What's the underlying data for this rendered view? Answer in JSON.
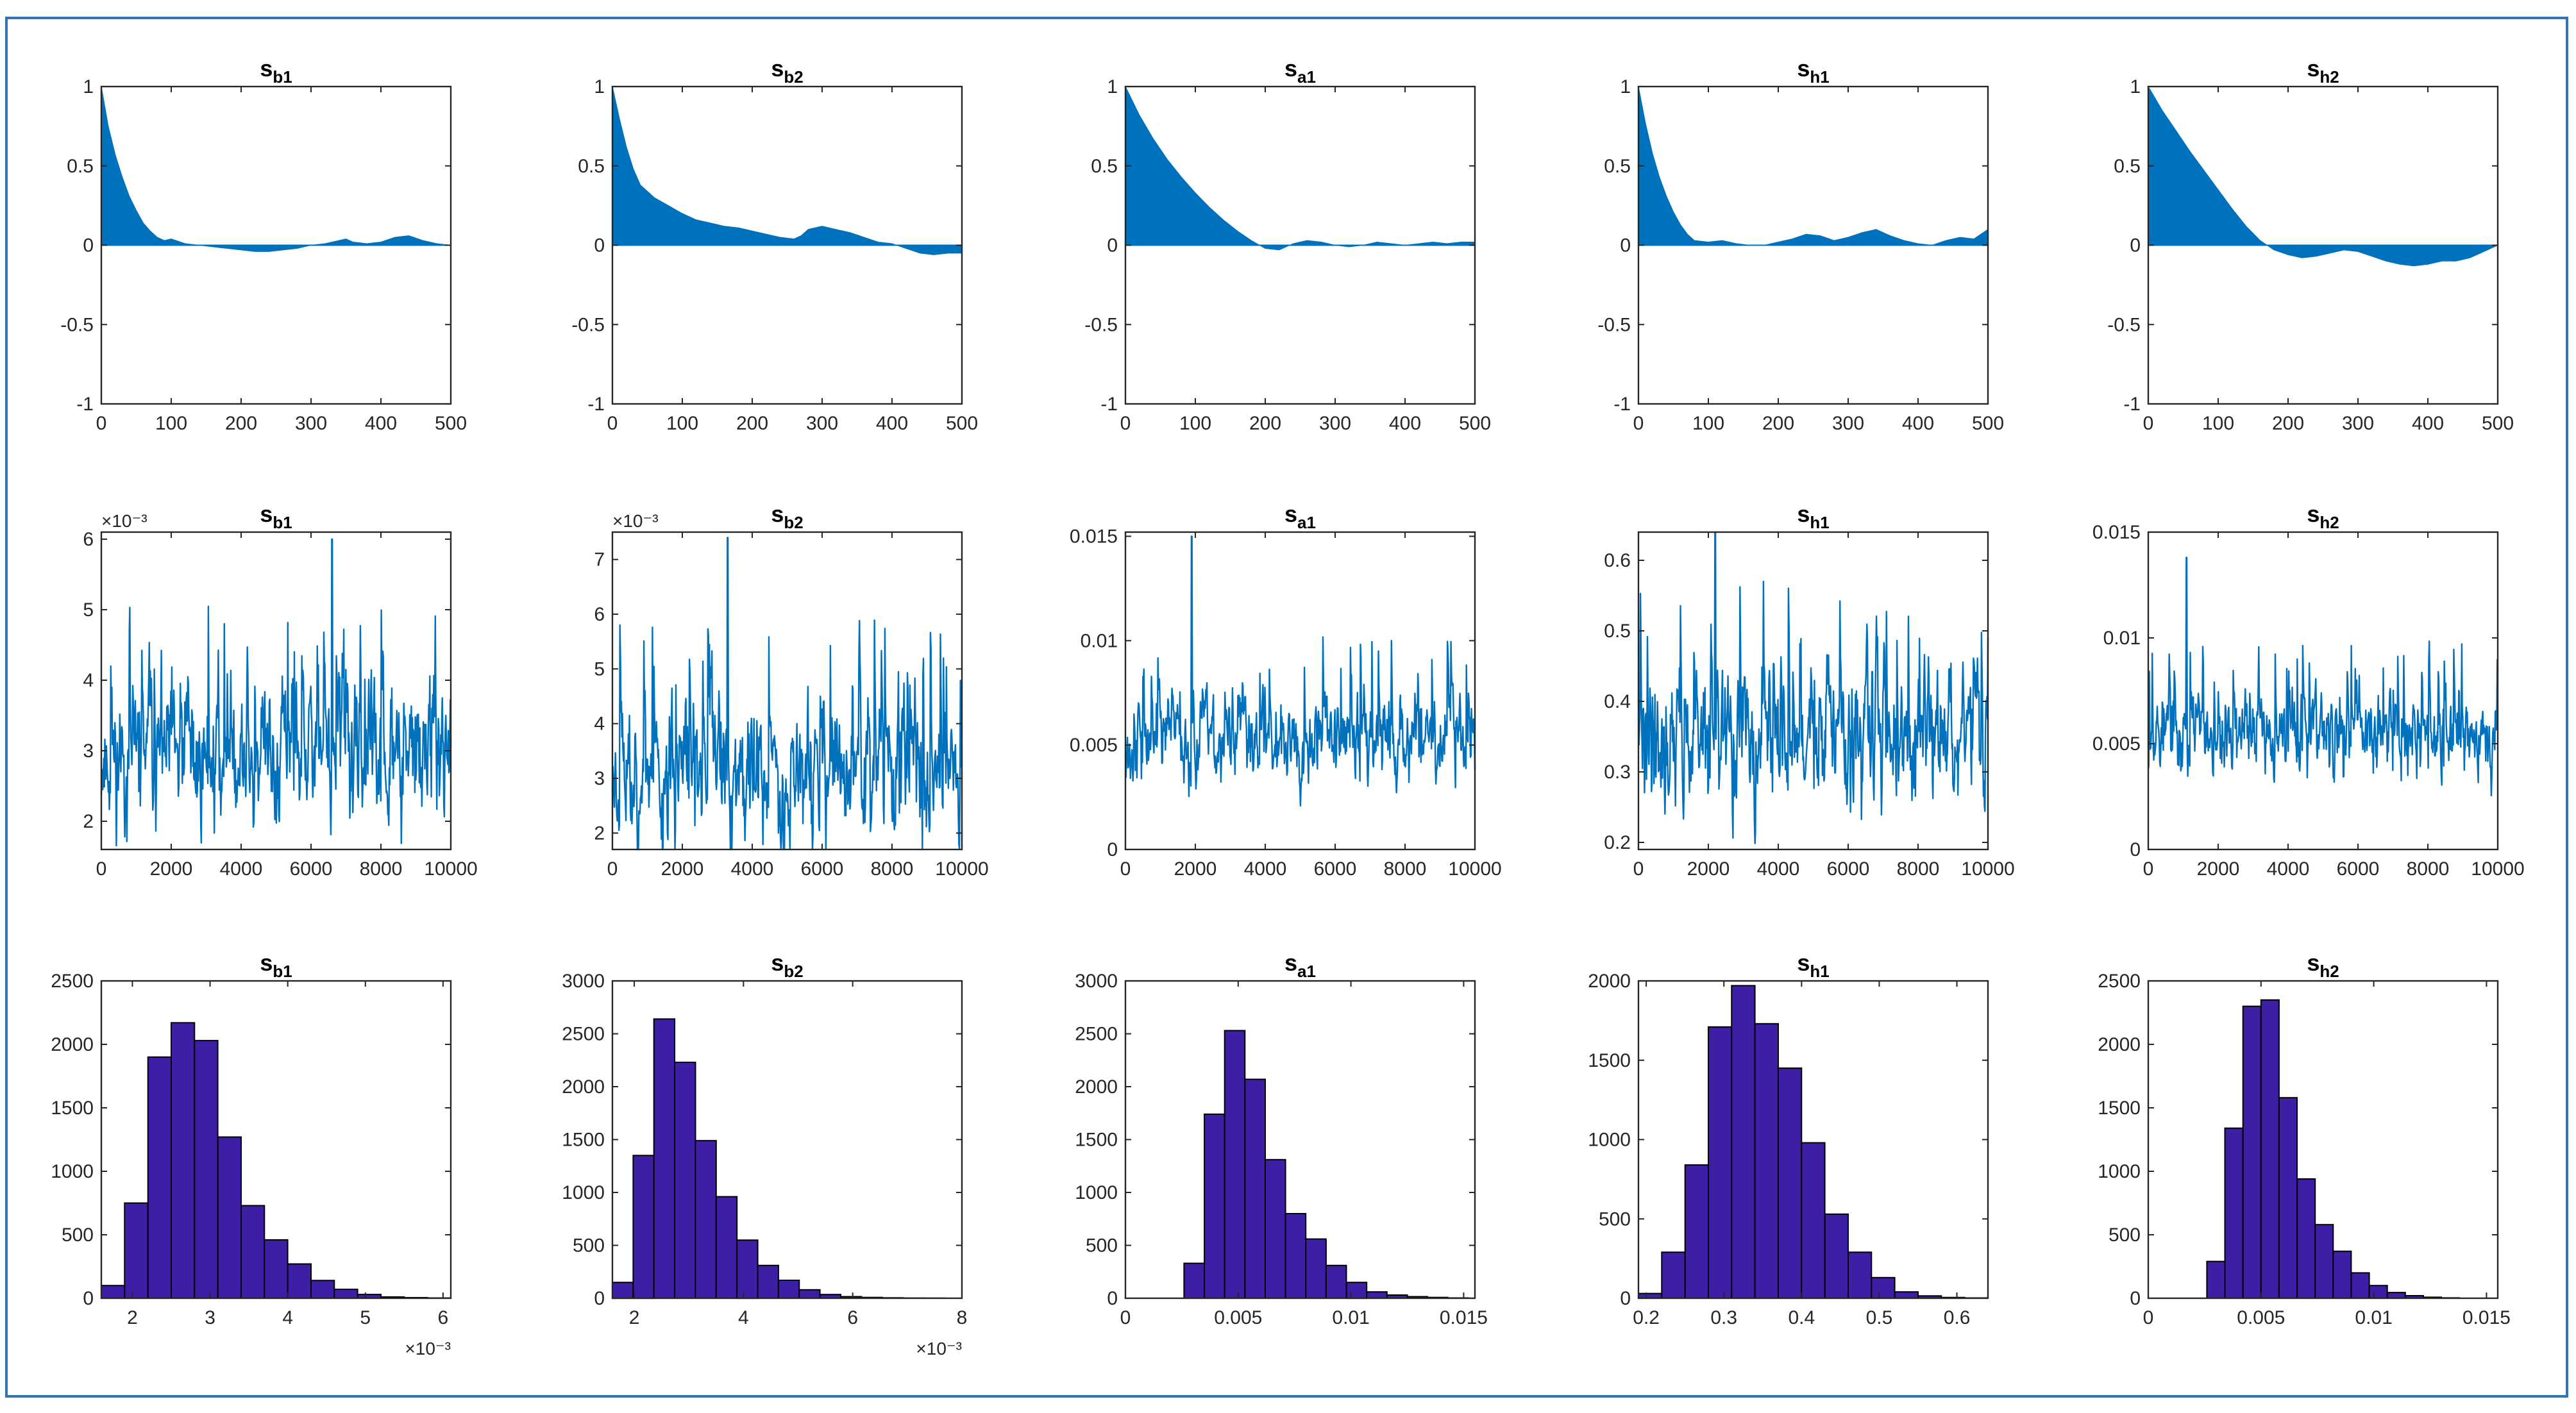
{
  "figure": {
    "frame_color": "#2e75b6"
  },
  "colors": {
    "acf_fill": "#0072bd",
    "trace_line": "#0072bd",
    "hist_fill": "#3f1ea6",
    "axis": "#262626"
  },
  "chart_data": [
    {
      "type": "area",
      "row": "autocorrelation",
      "title_base": "s",
      "title_sub": "b1",
      "xlim": [
        0,
        500
      ],
      "ylim": [
        -1,
        1
      ],
      "xticks": [
        0,
        100,
        200,
        300,
        400,
        500
      ],
      "xtick_labels": [
        "0",
        "100",
        "200",
        "300",
        "400",
        "500"
      ],
      "yticks": [
        -1,
        -0.5,
        0,
        0.5,
        1
      ],
      "ytick_labels": [
        "-1",
        "-0.5",
        "0",
        "0.5",
        "1"
      ],
      "x": [
        0,
        10,
        20,
        30,
        40,
        50,
        60,
        70,
        80,
        90,
        100,
        120,
        140,
        160,
        180,
        200,
        220,
        240,
        260,
        280,
        300,
        320,
        340,
        350,
        360,
        380,
        400,
        420,
        440,
        460,
        480,
        500
      ],
      "values": [
        1,
        0.75,
        0.57,
        0.43,
        0.31,
        0.22,
        0.14,
        0.09,
        0.05,
        0.03,
        0.04,
        0.01,
        0,
        -0.01,
        -0.02,
        -0.03,
        -0.04,
        -0.04,
        -0.03,
        -0.02,
        0,
        0.01,
        0.03,
        0.04,
        0.02,
        0.01,
        0.02,
        0.05,
        0.06,
        0.03,
        0.01,
        0
      ]
    },
    {
      "type": "area",
      "row": "autocorrelation",
      "title_base": "s",
      "title_sub": "b2",
      "xlim": [
        0,
        500
      ],
      "ylim": [
        -1,
        1
      ],
      "xticks": [
        0,
        100,
        200,
        300,
        400,
        500
      ],
      "xtick_labels": [
        "0",
        "100",
        "200",
        "300",
        "400",
        "500"
      ],
      "yticks": [
        -1,
        -0.5,
        0,
        0.5,
        1
      ],
      "ytick_labels": [
        "-1",
        "-0.5",
        "0",
        "0.5",
        "1"
      ],
      "x": [
        0,
        10,
        20,
        30,
        40,
        60,
        80,
        100,
        120,
        140,
        160,
        180,
        200,
        220,
        240,
        260,
        270,
        280,
        300,
        320,
        340,
        360,
        380,
        400,
        420,
        440,
        460,
        480,
        500
      ],
      "values": [
        1,
        0.8,
        0.62,
        0.48,
        0.38,
        0.3,
        0.25,
        0.2,
        0.16,
        0.14,
        0.12,
        0.11,
        0.09,
        0.07,
        0.05,
        0.04,
        0.06,
        0.1,
        0.12,
        0.1,
        0.08,
        0.05,
        0.02,
        0.01,
        -0.02,
        -0.05,
        -0.06,
        -0.05,
        -0.05
      ]
    },
    {
      "type": "area",
      "row": "autocorrelation",
      "title_base": "s",
      "title_sub": "a1",
      "xlim": [
        0,
        500
      ],
      "ylim": [
        -1,
        1
      ],
      "xticks": [
        0,
        100,
        200,
        300,
        400,
        500
      ],
      "xtick_labels": [
        "0",
        "100",
        "200",
        "300",
        "400",
        "500"
      ],
      "yticks": [
        -1,
        -0.5,
        0,
        0.5,
        1
      ],
      "ytick_labels": [
        "-1",
        "-0.5",
        "0",
        "0.5",
        "1"
      ],
      "x": [
        0,
        20,
        40,
        60,
        80,
        100,
        120,
        140,
        160,
        180,
        200,
        220,
        240,
        260,
        280,
        300,
        320,
        340,
        360,
        380,
        400,
        420,
        440,
        460,
        480,
        500
      ],
      "values": [
        1,
        0.82,
        0.67,
        0.54,
        0.43,
        0.33,
        0.24,
        0.16,
        0.09,
        0.03,
        -0.02,
        -0.03,
        0.01,
        0.03,
        0.02,
        0,
        -0.01,
        0,
        0.02,
        0.01,
        0,
        0.01,
        0.02,
        0.01,
        0.02,
        0.02
      ]
    },
    {
      "type": "area",
      "row": "autocorrelation",
      "title_base": "s",
      "title_sub": "h1",
      "xlim": [
        0,
        500
      ],
      "ylim": [
        -1,
        1
      ],
      "xticks": [
        0,
        100,
        200,
        300,
        400,
        500
      ],
      "xtick_labels": [
        "0",
        "100",
        "200",
        "300",
        "400",
        "500"
      ],
      "yticks": [
        -1,
        -0.5,
        0,
        0.5,
        1
      ],
      "ytick_labels": [
        "-1",
        "-0.5",
        "0",
        "0.5",
        "1"
      ],
      "x": [
        0,
        10,
        20,
        30,
        40,
        50,
        60,
        70,
        80,
        100,
        120,
        140,
        160,
        180,
        200,
        220,
        240,
        260,
        280,
        300,
        320,
        340,
        360,
        380,
        400,
        420,
        440,
        460,
        480,
        500
      ],
      "values": [
        1,
        0.77,
        0.58,
        0.43,
        0.31,
        0.21,
        0.13,
        0.07,
        0.03,
        0.02,
        0.03,
        0.01,
        0,
        0,
        0.02,
        0.04,
        0.07,
        0.06,
        0.03,
        0.05,
        0.08,
        0.1,
        0.06,
        0.03,
        0.01,
        0,
        0.03,
        0.05,
        0.04,
        0.1
      ]
    },
    {
      "type": "area",
      "row": "autocorrelation",
      "title_base": "s",
      "title_sub": "h2",
      "xlim": [
        0,
        500
      ],
      "ylim": [
        -1,
        1
      ],
      "xticks": [
        0,
        100,
        200,
        300,
        400,
        500
      ],
      "xtick_labels": [
        "0",
        "100",
        "200",
        "300",
        "400",
        "500"
      ],
      "yticks": [
        -1,
        -0.5,
        0,
        0.5,
        1
      ],
      "ytick_labels": [
        "-1",
        "-0.5",
        "0",
        "0.5",
        "1"
      ],
      "x": [
        0,
        20,
        40,
        60,
        80,
        100,
        120,
        140,
        160,
        180,
        200,
        220,
        240,
        260,
        280,
        300,
        320,
        340,
        360,
        380,
        400,
        420,
        440,
        460,
        480,
        500
      ],
      "values": [
        1,
        0.85,
        0.72,
        0.59,
        0.47,
        0.35,
        0.23,
        0.12,
        0.03,
        -0.03,
        -0.06,
        -0.08,
        -0.07,
        -0.05,
        -0.03,
        -0.04,
        -0.07,
        -0.1,
        -0.12,
        -0.13,
        -0.12,
        -0.1,
        -0.1,
        -0.08,
        -0.04,
        0
      ]
    },
    {
      "type": "line",
      "row": "trace",
      "title_base": "s",
      "title_sub": "b1",
      "xlim": [
        0,
        10000
      ],
      "ylim": [
        1.6,
        6.1
      ],
      "xticks": [
        0,
        2000,
        4000,
        6000,
        8000,
        10000
      ],
      "xtick_labels": [
        "0",
        "2000",
        "4000",
        "6000",
        "8000",
        "10000"
      ],
      "yticks": [
        2,
        3,
        4,
        5,
        6
      ],
      "ytick_labels": [
        "2",
        "3",
        "4",
        "5",
        "6"
      ],
      "exponent_label": "×10⁻³",
      "n_samples": 10000,
      "center": 2.9,
      "spread": 0.55,
      "spike_x": 6600,
      "spike_y": 6.0,
      "seed": 11
    },
    {
      "type": "line",
      "row": "trace",
      "title_base": "s",
      "title_sub": "b2",
      "xlim": [
        0,
        10000
      ],
      "ylim": [
        1.7,
        7.5
      ],
      "xticks": [
        0,
        2000,
        4000,
        6000,
        8000,
        10000
      ],
      "xtick_labels": [
        "0",
        "2000",
        "4000",
        "6000",
        "8000",
        "10000"
      ],
      "yticks": [
        2,
        3,
        4,
        5,
        6,
        7
      ],
      "ytick_labels": [
        "2",
        "3",
        "4",
        "5",
        "6",
        "7"
      ],
      "exponent_label": "×10⁻³",
      "n_samples": 10000,
      "center": 3.1,
      "spread": 0.7,
      "spike_x": 3300,
      "spike_y": 7.4,
      "seed": 23
    },
    {
      "type": "line",
      "row": "trace",
      "title_base": "s",
      "title_sub": "a1",
      "xlim": [
        0,
        10000
      ],
      "ylim": [
        0,
        0.0152
      ],
      "xticks": [
        0,
        2000,
        4000,
        6000,
        8000,
        10000
      ],
      "xtick_labels": [
        "0",
        "2000",
        "4000",
        "6000",
        "8000",
        "10000"
      ],
      "yticks": [
        0,
        0.005,
        0.01,
        0.015
      ],
      "ytick_labels": [
        "0",
        "0.005",
        "0.01",
        "0.015"
      ],
      "exponent_label": "",
      "n_samples": 10000,
      "center": 0.0055,
      "spread": 0.0012,
      "spike_x": 1900,
      "spike_y": 0.015,
      "seed": 37
    },
    {
      "type": "line",
      "row": "trace",
      "title_base": "s",
      "title_sub": "h1",
      "xlim": [
        0,
        10000
      ],
      "ylim": [
        0.19,
        0.64
      ],
      "xticks": [
        0,
        2000,
        4000,
        6000,
        8000,
        10000
      ],
      "xtick_labels": [
        "0",
        "2000",
        "4000",
        "6000",
        "8000",
        "10000"
      ],
      "yticks": [
        0.2,
        0.3,
        0.4,
        0.5,
        0.6
      ],
      "ytick_labels": [
        "0.2",
        "0.3",
        "0.4",
        "0.5",
        "0.6"
      ],
      "exponent_label": "",
      "n_samples": 10000,
      "center": 0.35,
      "spread": 0.055,
      "spike_x": 2200,
      "spike_y": 0.64,
      "seed": 41
    },
    {
      "type": "line",
      "row": "trace",
      "title_base": "s",
      "title_sub": "h2",
      "xlim": [
        0,
        10000
      ],
      "ylim": [
        0,
        0.015
      ],
      "xticks": [
        0,
        2000,
        4000,
        6000,
        8000,
        10000
      ],
      "xtick_labels": [
        "0",
        "2000",
        "4000",
        "6000",
        "8000",
        "10000"
      ],
      "yticks": [
        0,
        0.005,
        0.01,
        0.015
      ],
      "ytick_labels": [
        "0",
        "0.005",
        "0.01",
        "0.015"
      ],
      "exponent_label": "",
      "n_samples": 10000,
      "center": 0.0055,
      "spread": 0.0011,
      "spike_x": 1100,
      "spike_y": 0.0138,
      "seed": 53
    },
    {
      "type": "bar",
      "row": "histogram",
      "title_base": "s",
      "title_sub": "b1",
      "xlim": [
        1.6,
        6.1
      ],
      "ylim": [
        0,
        2500
      ],
      "xticks": [
        2,
        3,
        4,
        5,
        6
      ],
      "xtick_labels": [
        "2",
        "3",
        "4",
        "5",
        "6"
      ],
      "yticks": [
        0,
        500,
        1000,
        1500,
        2000,
        2500
      ],
      "ytick_labels": [
        "0",
        "500",
        "1000",
        "1500",
        "2000",
        "2500"
      ],
      "exponent_label": "×10⁻³",
      "bin_edges": [
        1.6,
        1.9,
        2.2,
        2.5,
        2.8,
        3.1,
        3.4,
        3.7,
        4.0,
        4.3,
        4.6,
        4.9,
        5.2,
        5.5,
        5.8,
        6.1
      ],
      "values": [
        100,
        750,
        1900,
        2170,
        2030,
        1270,
        730,
        460,
        270,
        140,
        70,
        30,
        10,
        5,
        2
      ]
    },
    {
      "type": "bar",
      "row": "histogram",
      "title_base": "s",
      "title_sub": "b2",
      "xlim": [
        1.6,
        8
      ],
      "ylim": [
        0,
        3000
      ],
      "xticks": [
        2,
        4,
        6,
        8
      ],
      "xtick_labels": [
        "2",
        "4",
        "6",
        "8"
      ],
      "yticks": [
        0,
        500,
        1000,
        1500,
        2000,
        2500,
        3000
      ],
      "ytick_labels": [
        "0",
        "500",
        "1000",
        "1500",
        "2000",
        "2500",
        "3000"
      ],
      "exponent_label": "×10⁻³",
      "bin_edges": [
        1.6,
        1.98,
        2.36,
        2.74,
        3.12,
        3.5,
        3.88,
        4.26,
        4.64,
        5.02,
        5.4,
        5.78,
        6.16,
        6.54,
        6.92,
        7.3,
        7.68
      ],
      "values": [
        150,
        1350,
        2640,
        2230,
        1490,
        960,
        550,
        310,
        170,
        80,
        35,
        15,
        8,
        4,
        2,
        1
      ]
    },
    {
      "type": "bar",
      "row": "histogram",
      "title_base": "s",
      "title_sub": "a1",
      "xlim": [
        0,
        0.0155
      ],
      "ylim": [
        0,
        3000
      ],
      "xticks": [
        0,
        0.005,
        0.01,
        0.015
      ],
      "xtick_labels": [
        "0",
        "0.005",
        "0.01",
        "0.015"
      ],
      "yticks": [
        0,
        500,
        1000,
        1500,
        2000,
        2500,
        3000
      ],
      "ytick_labels": [
        "0",
        "500",
        "1000",
        "1500",
        "2000",
        "2500",
        "3000"
      ],
      "exponent_label": "",
      "bin_edges": [
        0.0026,
        0.0035,
        0.0044,
        0.0053,
        0.0062,
        0.0071,
        0.008,
        0.0089,
        0.0098,
        0.0107,
        0.0116,
        0.0125,
        0.0134,
        0.0143,
        0.0152
      ],
      "values": [
        330,
        1740,
        2530,
        2070,
        1310,
        800,
        560,
        310,
        150,
        60,
        30,
        15,
        8,
        3
      ]
    },
    {
      "type": "bar",
      "row": "histogram",
      "title_base": "s",
      "title_sub": "h1",
      "xlim": [
        0.19,
        0.64
      ],
      "ylim": [
        0,
        2000
      ],
      "xticks": [
        0.2,
        0.3,
        0.4,
        0.5,
        0.6
      ],
      "xtick_labels": [
        "0.2",
        "0.3",
        "0.4",
        "0.5",
        "0.6"
      ],
      "yticks": [
        0,
        500,
        1000,
        1500,
        2000
      ],
      "ytick_labels": [
        "0",
        "500",
        "1000",
        "1500",
        "2000"
      ],
      "exponent_label": "",
      "bin_edges": [
        0.19,
        0.22,
        0.25,
        0.28,
        0.31,
        0.34,
        0.37,
        0.4,
        0.43,
        0.46,
        0.49,
        0.52,
        0.55,
        0.58,
        0.61,
        0.64
      ],
      "values": [
        30,
        290,
        840,
        1710,
        1970,
        1730,
        1450,
        980,
        530,
        290,
        130,
        40,
        15,
        5,
        2
      ]
    },
    {
      "type": "bar",
      "row": "histogram",
      "title_base": "s",
      "title_sub": "h2",
      "xlim": [
        0,
        0.0155
      ],
      "ylim": [
        0,
        2500
      ],
      "xticks": [
        0,
        0.005,
        0.01,
        0.015
      ],
      "xtick_labels": [
        "0",
        "0.005",
        "0.01",
        "0.015"
      ],
      "yticks": [
        0,
        500,
        1000,
        1500,
        2000,
        2500
      ],
      "ytick_labels": [
        "0",
        "500",
        "1000",
        "1500",
        "2000",
        "2500"
      ],
      "exponent_label": "",
      "bin_edges": [
        0.0026,
        0.0034,
        0.0042,
        0.005,
        0.0058,
        0.0066,
        0.0074,
        0.0082,
        0.009,
        0.0098,
        0.0106,
        0.0114,
        0.0122,
        0.013,
        0.0138
      ],
      "values": [
        290,
        1340,
        2300,
        2350,
        1580,
        940,
        580,
        370,
        200,
        100,
        45,
        20,
        8,
        3
      ]
    }
  ]
}
